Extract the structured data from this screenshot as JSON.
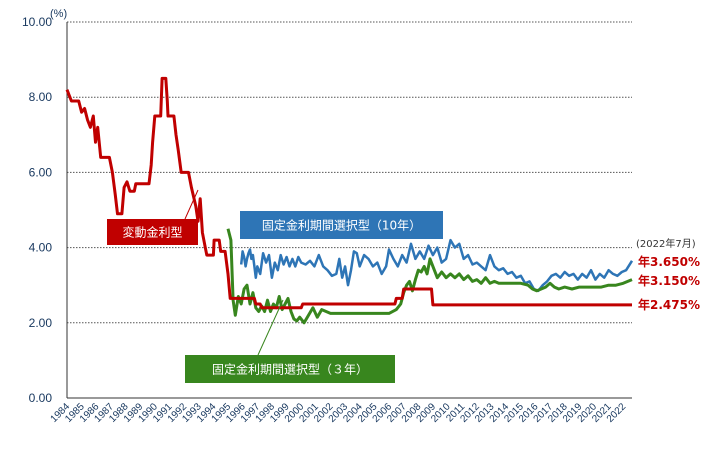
{
  "chart_data": {
    "type": "line",
    "unit_label": "(%)",
    "ylim": [
      0,
      10
    ],
    "yticks": [
      "0.00",
      "2.00",
      "4.00",
      "6.00",
      "8.00",
      "10.00"
    ],
    "grid": "horizontal dotted",
    "xlim": [
      1984,
      2022.6
    ],
    "xticks": [
      "1984",
      "1985",
      "1986",
      "1987",
      "1988",
      "1989",
      "1990",
      "1991",
      "1992",
      "1993",
      "1994",
      "1995",
      "1996",
      "1997",
      "1998",
      "1999",
      "2000",
      "2001",
      "2002",
      "2003",
      "2004",
      "2005",
      "2006",
      "2007",
      "2008",
      "2009",
      "2010",
      "2011",
      "2012",
      "2013",
      "2014",
      "2015",
      "2016",
      "2017",
      "2018",
      "2019",
      "2020",
      "2021",
      "2022"
    ],
    "date_note": "(2022年7月)",
    "series": [
      {
        "name": "変動金利型",
        "color": "#c00000",
        "end_label": "年2.475%",
        "points": [
          [
            1984.0,
            8.2
          ],
          [
            1984.3,
            7.9
          ],
          [
            1984.8,
            7.9
          ],
          [
            1985.0,
            7.6
          ],
          [
            1985.2,
            7.7
          ],
          [
            1985.4,
            7.4
          ],
          [
            1985.6,
            7.2
          ],
          [
            1985.8,
            7.5
          ],
          [
            1985.95,
            6.8
          ],
          [
            1986.1,
            7.2
          ],
          [
            1986.3,
            6.4
          ],
          [
            1986.9,
            6.4
          ],
          [
            1987.1,
            6.0
          ],
          [
            1987.3,
            5.4
          ],
          [
            1987.45,
            4.9
          ],
          [
            1987.75,
            4.9
          ],
          [
            1987.9,
            5.6
          ],
          [
            1988.1,
            5.75
          ],
          [
            1988.3,
            5.5
          ],
          [
            1988.6,
            5.5
          ],
          [
            1988.7,
            5.7
          ],
          [
            1989.6,
            5.7
          ],
          [
            1989.75,
            6.2
          ],
          [
            1989.85,
            6.8
          ],
          [
            1990.0,
            7.5
          ],
          [
            1990.4,
            7.5
          ],
          [
            1990.5,
            8.5
          ],
          [
            1990.75,
            8.5
          ],
          [
            1990.85,
            7.9
          ],
          [
            1990.9,
            7.5
          ],
          [
            1991.3,
            7.5
          ],
          [
            1991.45,
            7.0
          ],
          [
            1991.6,
            6.6
          ],
          [
            1991.8,
            6.0
          ],
          [
            1992.3,
            6.0
          ],
          [
            1992.5,
            5.6
          ],
          [
            1992.8,
            5.1
          ],
          [
            1992.95,
            4.7
          ],
          [
            1993.1,
            5.3
          ],
          [
            1993.25,
            4.4
          ],
          [
            1993.45,
            4.0
          ],
          [
            1993.55,
            3.8
          ],
          [
            1994.0,
            3.8
          ],
          [
            1994.05,
            4.2
          ],
          [
            1994.4,
            4.2
          ],
          [
            1994.5,
            3.9
          ],
          [
            1994.8,
            3.9
          ],
          [
            1995.0,
            3.3
          ],
          [
            1995.15,
            2.65
          ],
          [
            1996.8,
            2.65
          ],
          [
            1996.9,
            2.5
          ],
          [
            1997.2,
            2.5
          ],
          [
            1997.3,
            2.4
          ],
          [
            2000.0,
            2.4
          ],
          [
            2000.1,
            2.5
          ],
          [
            2006.4,
            2.5
          ],
          [
            2006.5,
            2.65
          ],
          [
            2006.9,
            2.65
          ],
          [
            2007.0,
            2.9
          ],
          [
            2008.9,
            2.9
          ],
          [
            2009.0,
            2.475
          ],
          [
            2022.6,
            2.475
          ]
        ]
      },
      {
        "name": "固定金利期間選択型（10年）",
        "color": "#2e75b6",
        "end_label": "年3.650%",
        "points": [
          [
            1995.9,
            3.55
          ],
          [
            1996.0,
            3.9
          ],
          [
            1996.1,
            3.75
          ],
          [
            1996.2,
            3.5
          ],
          [
            1996.3,
            3.7
          ],
          [
            1996.4,
            3.85
          ],
          [
            1996.5,
            3.95
          ],
          [
            1996.6,
            3.7
          ],
          [
            1996.7,
            3.8
          ],
          [
            1996.8,
            3.5
          ],
          [
            1996.9,
            3.2
          ],
          [
            1997.0,
            3.5
          ],
          [
            1997.2,
            3.3
          ],
          [
            1997.4,
            3.85
          ],
          [
            1997.6,
            3.6
          ],
          [
            1997.8,
            3.8
          ],
          [
            1998.0,
            3.2
          ],
          [
            1998.2,
            3.6
          ],
          [
            1998.4,
            3.4
          ],
          [
            1998.6,
            3.8
          ],
          [
            1998.8,
            3.55
          ],
          [
            1999.0,
            3.75
          ],
          [
            1999.2,
            3.5
          ],
          [
            1999.4,
            3.7
          ],
          [
            1999.6,
            3.5
          ],
          [
            1999.8,
            3.75
          ],
          [
            2000.0,
            3.6
          ],
          [
            2000.3,
            3.55
          ],
          [
            2000.6,
            3.65
          ],
          [
            2000.9,
            3.5
          ],
          [
            2001.2,
            3.8
          ],
          [
            2001.5,
            3.5
          ],
          [
            2001.8,
            3.4
          ],
          [
            2002.1,
            3.25
          ],
          [
            2002.4,
            3.3
          ],
          [
            2002.6,
            3.7
          ],
          [
            2002.8,
            3.2
          ],
          [
            2003.0,
            3.5
          ],
          [
            2003.2,
            3.0
          ],
          [
            2003.4,
            3.4
          ],
          [
            2003.6,
            3.9
          ],
          [
            2003.8,
            3.85
          ],
          [
            2004.0,
            3.5
          ],
          [
            2004.3,
            3.8
          ],
          [
            2004.6,
            3.7
          ],
          [
            2004.9,
            3.5
          ],
          [
            2005.2,
            3.6
          ],
          [
            2005.5,
            3.3
          ],
          [
            2005.8,
            3.5
          ],
          [
            2006.0,
            3.95
          ],
          [
            2006.3,
            3.7
          ],
          [
            2006.6,
            3.5
          ],
          [
            2006.9,
            3.8
          ],
          [
            2007.2,
            3.6
          ],
          [
            2007.5,
            4.1
          ],
          [
            2007.8,
            3.7
          ],
          [
            2008.1,
            3.9
          ],
          [
            2008.4,
            3.7
          ],
          [
            2008.7,
            4.05
          ],
          [
            2009.0,
            3.8
          ],
          [
            2009.3,
            4.0
          ],
          [
            2009.6,
            3.6
          ],
          [
            2009.9,
            3.7
          ],
          [
            2010.2,
            4.2
          ],
          [
            2010.5,
            4.0
          ],
          [
            2010.8,
            4.1
          ],
          [
            2011.1,
            3.7
          ],
          [
            2011.4,
            3.8
          ],
          [
            2011.7,
            3.55
          ],
          [
            2012.0,
            3.6
          ],
          [
            2012.3,
            3.5
          ],
          [
            2012.6,
            3.4
          ],
          [
            2012.9,
            3.8
          ],
          [
            2013.2,
            3.5
          ],
          [
            2013.5,
            3.4
          ],
          [
            2013.8,
            3.45
          ],
          [
            2014.1,
            3.3
          ],
          [
            2014.4,
            3.35
          ],
          [
            2014.7,
            3.2
          ],
          [
            2015.0,
            3.25
          ],
          [
            2015.3,
            3.05
          ],
          [
            2015.6,
            3.1
          ],
          [
            2015.9,
            2.9
          ],
          [
            2016.2,
            2.85
          ],
          [
            2016.5,
            3.0
          ],
          [
            2016.8,
            3.1
          ],
          [
            2017.1,
            3.25
          ],
          [
            2017.4,
            3.3
          ],
          [
            2017.7,
            3.2
          ],
          [
            2018.0,
            3.35
          ],
          [
            2018.3,
            3.25
          ],
          [
            2018.6,
            3.3
          ],
          [
            2018.9,
            3.15
          ],
          [
            2019.2,
            3.3
          ],
          [
            2019.5,
            3.2
          ],
          [
            2019.8,
            3.4
          ],
          [
            2020.1,
            3.15
          ],
          [
            2020.4,
            3.3
          ],
          [
            2020.7,
            3.2
          ],
          [
            2021.0,
            3.4
          ],
          [
            2021.3,
            3.3
          ],
          [
            2021.6,
            3.25
          ],
          [
            2021.9,
            3.35
          ],
          [
            2022.2,
            3.4
          ],
          [
            2022.6,
            3.65
          ]
        ]
      },
      {
        "name": "固定金利期間選択型（３年）",
        "color": "#38861e",
        "end_label": "年3.150%",
        "points": [
          [
            1995.0,
            4.5
          ],
          [
            1995.2,
            4.2
          ],
          [
            1995.35,
            2.6
          ],
          [
            1995.5,
            2.2
          ],
          [
            1995.7,
            2.7
          ],
          [
            1995.9,
            2.5
          ],
          [
            1996.1,
            2.9
          ],
          [
            1996.3,
            3.0
          ],
          [
            1996.5,
            2.5
          ],
          [
            1996.7,
            2.8
          ],
          [
            1996.9,
            2.4
          ],
          [
            1997.1,
            2.3
          ],
          [
            1997.3,
            2.45
          ],
          [
            1997.5,
            2.3
          ],
          [
            1997.7,
            2.6
          ],
          [
            1997.9,
            2.3
          ],
          [
            1998.1,
            2.5
          ],
          [
            1998.3,
            2.4
          ],
          [
            1998.5,
            2.7
          ],
          [
            1998.7,
            2.35
          ],
          [
            1998.9,
            2.5
          ],
          [
            1999.1,
            2.65
          ],
          [
            1999.3,
            2.3
          ],
          [
            1999.5,
            2.1
          ],
          [
            1999.7,
            2.05
          ],
          [
            1999.9,
            2.15
          ],
          [
            2000.2,
            2.0
          ],
          [
            2000.5,
            2.2
          ],
          [
            2000.8,
            2.4
          ],
          [
            2001.1,
            2.15
          ],
          [
            2001.4,
            2.35
          ],
          [
            2001.7,
            2.3
          ],
          [
            2002.0,
            2.25
          ],
          [
            2003.0,
            2.25
          ],
          [
            2004.0,
            2.25
          ],
          [
            2005.0,
            2.25
          ],
          [
            2006.0,
            2.25
          ],
          [
            2006.5,
            2.35
          ],
          [
            2006.8,
            2.5
          ],
          [
            2007.0,
            2.8
          ],
          [
            2007.2,
            3.0
          ],
          [
            2007.4,
            3.1
          ],
          [
            2007.6,
            2.85
          ],
          [
            2007.8,
            3.15
          ],
          [
            2008.0,
            3.4
          ],
          [
            2008.2,
            3.35
          ],
          [
            2008.4,
            3.5
          ],
          [
            2008.6,
            3.3
          ],
          [
            2008.8,
            3.7
          ],
          [
            2009.0,
            3.5
          ],
          [
            2009.3,
            3.2
          ],
          [
            2009.6,
            3.35
          ],
          [
            2009.9,
            3.2
          ],
          [
            2010.2,
            3.3
          ],
          [
            2010.5,
            3.2
          ],
          [
            2010.8,
            3.3
          ],
          [
            2011.1,
            3.15
          ],
          [
            2011.4,
            3.25
          ],
          [
            2011.7,
            3.1
          ],
          [
            2012.0,
            3.15
          ],
          [
            2012.3,
            3.05
          ],
          [
            2012.6,
            3.2
          ],
          [
            2012.9,
            3.05
          ],
          [
            2013.2,
            3.1
          ],
          [
            2013.5,
            3.05
          ],
          [
            2014.0,
            3.05
          ],
          [
            2014.5,
            3.05
          ],
          [
            2015.0,
            3.05
          ],
          [
            2015.5,
            3.0
          ],
          [
            2015.8,
            2.9
          ],
          [
            2016.1,
            2.85
          ],
          [
            2016.4,
            2.9
          ],
          [
            2016.7,
            2.95
          ],
          [
            2017.0,
            3.05
          ],
          [
            2017.3,
            2.95
          ],
          [
            2017.6,
            2.9
          ],
          [
            2018.0,
            2.95
          ],
          [
            2018.5,
            2.9
          ],
          [
            2019.0,
            2.95
          ],
          [
            2019.5,
            2.95
          ],
          [
            2020.0,
            2.95
          ],
          [
            2020.5,
            2.95
          ],
          [
            2021.0,
            3.0
          ],
          [
            2021.5,
            3.0
          ],
          [
            2022.0,
            3.05
          ],
          [
            2022.6,
            3.15
          ]
        ]
      }
    ]
  }
}
